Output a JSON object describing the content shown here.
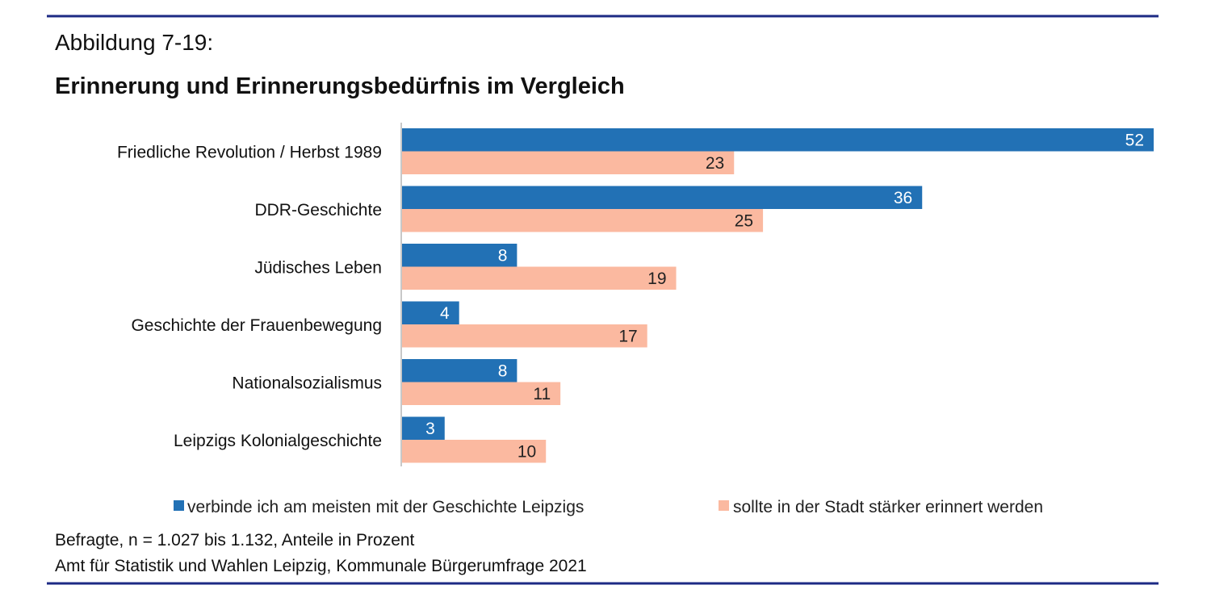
{
  "figure_number": "Abbildung 7-19:",
  "chart_data": {
    "type": "bar",
    "orientation": "horizontal",
    "title": "Erinnerung und Erinnerungsbedürfnis im Vergleich",
    "categories": [
      "Friedliche Revolution / Herbst 1989",
      "DDR-Geschichte",
      "Jüdisches Leben",
      "Geschichte der Frauenbewegung",
      "Nationalsozialismus",
      "Leipzigs Kolonialgeschichte"
    ],
    "series": [
      {
        "name": "verbinde ich am meisten mit der Geschichte Leipzigs",
        "values": [
          52,
          36,
          8,
          4,
          8,
          3
        ],
        "color": "#2271b5"
      },
      {
        "name": "sollte in der Stadt stärker erinnert werden",
        "values": [
          23,
          25,
          19,
          17,
          11,
          10
        ],
        "color": "#fbb9a0"
      }
    ],
    "xlim": [
      0,
      52
    ],
    "grid": false,
    "legend_position": "bottom"
  },
  "footnotes": [
    "Befragte, n = 1.027 bis 1.132, Anteile in Prozent",
    "Amt für Statistik und Wahlen Leipzig, Kommunale Bürgerumfrage 2021"
  ],
  "rule_color": "#1c2a84"
}
